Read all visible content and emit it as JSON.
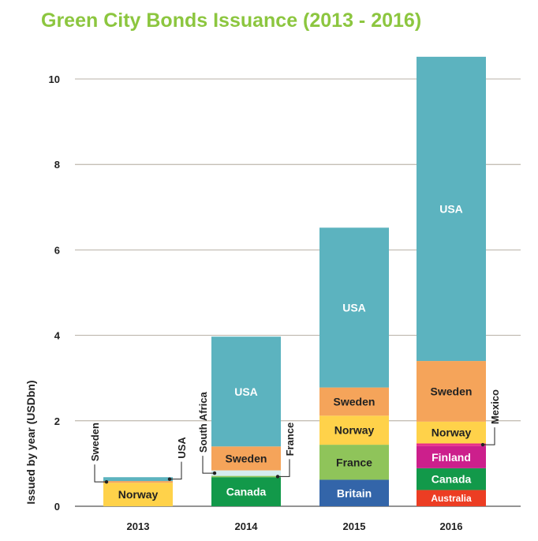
{
  "chart_data": {
    "type": "bar",
    "stacked": true,
    "title": "Green City Bonds Issuance (2013 - 2016)",
    "ylabel": "Issued by year (USDbn)",
    "xlabel": "",
    "ylim": [
      0,
      10.5
    ],
    "yticks": [
      0,
      2,
      4,
      6,
      8,
      10
    ],
    "grid": true,
    "colors": {
      "title": "#8cc63f",
      "grid": "#a39a8c",
      "axis": "#555555"
    },
    "categories": [
      "2013",
      "2014",
      "2015",
      "2016"
    ],
    "bars": [
      {
        "category": "2013",
        "segments": [
          {
            "label": "Norway",
            "value": 0.55,
            "color": "#ffd24a",
            "text": "dark"
          },
          {
            "label": "Sweden",
            "value": 0.04,
            "color": "#f5a45a",
            "text": "none",
            "callout": "Sweden",
            "callout_side": "left"
          },
          {
            "label": "USA",
            "value": 0.09,
            "color": "#5cb3bf",
            "text": "none",
            "callout": "USA",
            "callout_side": "right"
          }
        ]
      },
      {
        "category": "2014",
        "segments": [
          {
            "label": "Canada",
            "value": 0.68,
            "color": "#12994a",
            "text": "light"
          },
          {
            "label": "France",
            "value": 0.03,
            "color": "#8fc45a",
            "text": "none",
            "callout": "France",
            "callout_side": "right"
          },
          {
            "label": "South Africa",
            "value": 0.13,
            "color": "#d5ecef",
            "text": "none",
            "callout": "South Africa",
            "callout_side": "left"
          },
          {
            "label": "Sweden",
            "value": 0.56,
            "color": "#f5a45a",
            "text": "dark"
          },
          {
            "label": "USA",
            "value": 2.57,
            "color": "#5cb3bf",
            "text": "light"
          }
        ]
      },
      {
        "category": "2015",
        "segments": [
          {
            "label": "Britain",
            "value": 0.62,
            "color": "#3365a9",
            "text": "light"
          },
          {
            "label": "France",
            "value": 0.82,
            "color": "#8fc45a",
            "text": "dark"
          },
          {
            "label": "Norway",
            "value": 0.68,
            "color": "#ffd24a",
            "text": "dark"
          },
          {
            "label": "Sweden",
            "value": 0.66,
            "color": "#f5a45a",
            "text": "dark"
          },
          {
            "label": "USA",
            "value": 3.74,
            "color": "#5cb3bf",
            "text": "light"
          }
        ]
      },
      {
        "category": "2016",
        "segments": [
          {
            "label": "Australia",
            "value": 0.38,
            "color": "#ec3d23",
            "text": "light"
          },
          {
            "label": "Canada",
            "value": 0.51,
            "color": "#12994a",
            "text": "light"
          },
          {
            "label": "Finland",
            "value": 0.52,
            "color": "#cc1f8c",
            "text": "light"
          },
          {
            "label": "Mexico",
            "value": 0.06,
            "color": "#e8308a",
            "text": "none",
            "callout": "Mexico",
            "callout_side": "right"
          },
          {
            "label": "Norway",
            "value": 0.51,
            "color": "#ffd24a",
            "text": "dark"
          },
          {
            "label": "Sweden",
            "value": 1.42,
            "color": "#f5a45a",
            "text": "dark"
          },
          {
            "label": "USA",
            "value": 7.12,
            "color": "#5cb3bf",
            "text": "light"
          }
        ]
      }
    ]
  }
}
